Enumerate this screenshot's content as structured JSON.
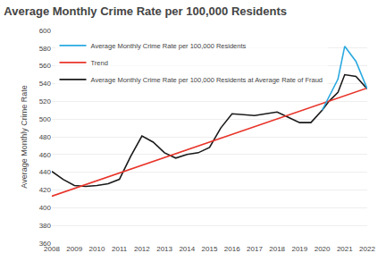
{
  "chart_data": {
    "type": "line",
    "title": "Average Monthly Crime Rate per 100,000 Residents",
    "y_label": "Average Monthly Crime Rate",
    "xlim": [
      2008,
      2022
    ],
    "ylim": [
      360,
      600
    ],
    "xticks": [
      2008,
      2009,
      2010,
      2011,
      2012,
      2013,
      2014,
      2015,
      2016,
      2017,
      2018,
      2019,
      2020,
      2021,
      2022
    ],
    "yticks": [
      360,
      380,
      400,
      420,
      440,
      460,
      480,
      500,
      520,
      540,
      560,
      580,
      600
    ],
    "grid": "y",
    "legend": "upper left",
    "series": [
      {
        "name": "Average Monthly Crime Rate per 100,000 Residents",
        "color": "#29a9e0",
        "x": [
          2020,
          2020.3,
          2020.7,
          2021,
          2021.5,
          2022
        ],
        "values": [
          510,
          525,
          545,
          582,
          565,
          534
        ]
      },
      {
        "name": "Trend",
        "color": "#e8352a",
        "x": [
          2008,
          2022
        ],
        "values": [
          413,
          535
        ]
      },
      {
        "name": "Average Monthly Crime Rate per 100,000 Residents at Average Rate of Fraud",
        "color": "#1a1a1a",
        "x": [
          2008,
          2008.5,
          2009,
          2009.5,
          2010,
          2010.5,
          2011,
          2011.5,
          2012,
          2012.5,
          2013,
          2013.5,
          2014,
          2014.5,
          2015,
          2015.5,
          2016,
          2016.5,
          2017,
          2017.5,
          2018,
          2018.5,
          2019,
          2019.5,
          2020,
          2020.3,
          2020.7,
          2021,
          2021.5,
          2022
        ],
        "values": [
          441,
          432,
          425,
          424,
          425,
          427,
          432,
          458,
          481,
          474,
          462,
          456,
          460,
          462,
          468,
          490,
          506,
          505,
          504,
          506,
          508,
          502,
          496,
          496,
          510,
          520,
          530,
          550,
          548,
          534
        ]
      }
    ]
  }
}
